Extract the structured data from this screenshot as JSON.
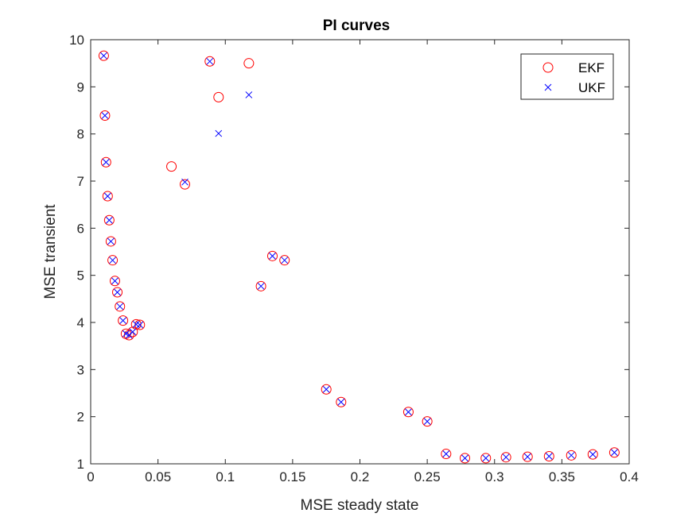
{
  "chart_data": {
    "type": "scatter",
    "title": "PI curves",
    "xlabel": "MSE steady state",
    "ylabel": "MSE transient",
    "xlim": [
      0,
      0.4
    ],
    "ylim": [
      1,
      10
    ],
    "xticks": [
      0,
      0.05,
      0.1,
      0.15,
      0.2,
      0.25,
      0.3,
      0.35,
      0.4
    ],
    "yticks": [
      1,
      2,
      3,
      4,
      5,
      6,
      7,
      8,
      9,
      10
    ],
    "xtick_labels": [
      "0",
      "0.05",
      "0.1",
      "0.15",
      "0.2",
      "0.25",
      "0.3",
      "0.35",
      "0.4"
    ],
    "ytick_labels": [
      "1",
      "2",
      "3",
      "4",
      "5",
      "6",
      "7",
      "8",
      "9",
      "10"
    ],
    "grid": false,
    "legend_position": "top-right",
    "series": [
      {
        "name": "EKF",
        "marker": "circle",
        "color": "#ff0000",
        "x": [
          0.0097,
          0.0106,
          0.0114,
          0.0126,
          0.0138,
          0.015,
          0.0163,
          0.018,
          0.0198,
          0.0217,
          0.024,
          0.0262,
          0.0285,
          0.0312,
          0.0338,
          0.0365,
          0.06,
          0.07,
          0.0885,
          0.095,
          0.1175,
          0.1265,
          0.135,
          0.144,
          0.175,
          0.186,
          0.236,
          0.25,
          0.264,
          0.278,
          0.2935,
          0.3085,
          0.3245,
          0.3405,
          0.357,
          0.373,
          0.389
        ],
        "y": [
          9.66,
          8.39,
          7.4,
          6.68,
          6.17,
          5.72,
          5.32,
          4.88,
          4.64,
          4.34,
          4.04,
          3.76,
          3.73,
          3.8,
          3.96,
          3.95,
          7.31,
          6.93,
          9.54,
          8.78,
          9.5,
          4.77,
          5.41,
          5.32,
          2.58,
          2.31,
          2.1,
          1.9,
          1.21,
          1.12,
          1.12,
          1.14,
          1.15,
          1.16,
          1.18,
          1.2,
          1.24
        ]
      },
      {
        "name": "UKF",
        "marker": "x",
        "color": "#0000ff",
        "x": [
          0.0097,
          0.0106,
          0.0114,
          0.0126,
          0.0138,
          0.015,
          0.0163,
          0.018,
          0.0198,
          0.0217,
          0.024,
          0.0262,
          0.0285,
          0.0312,
          0.0338,
          0.0365,
          0.07,
          0.0885,
          0.095,
          0.1175,
          0.1265,
          0.135,
          0.144,
          0.175,
          0.186,
          0.236,
          0.25,
          0.264,
          0.278,
          0.2935,
          0.3085,
          0.3245,
          0.3405,
          0.357,
          0.373,
          0.389
        ],
        "y": [
          9.66,
          8.39,
          7.4,
          6.68,
          6.17,
          5.72,
          5.32,
          4.88,
          4.64,
          4.34,
          4.04,
          3.76,
          3.73,
          3.8,
          3.96,
          3.95,
          6.98,
          9.54,
          8.01,
          8.83,
          4.77,
          5.41,
          5.32,
          2.58,
          2.31,
          2.1,
          1.9,
          1.21,
          1.12,
          1.12,
          1.14,
          1.15,
          1.16,
          1.18,
          1.2,
          1.24
        ]
      }
    ]
  }
}
